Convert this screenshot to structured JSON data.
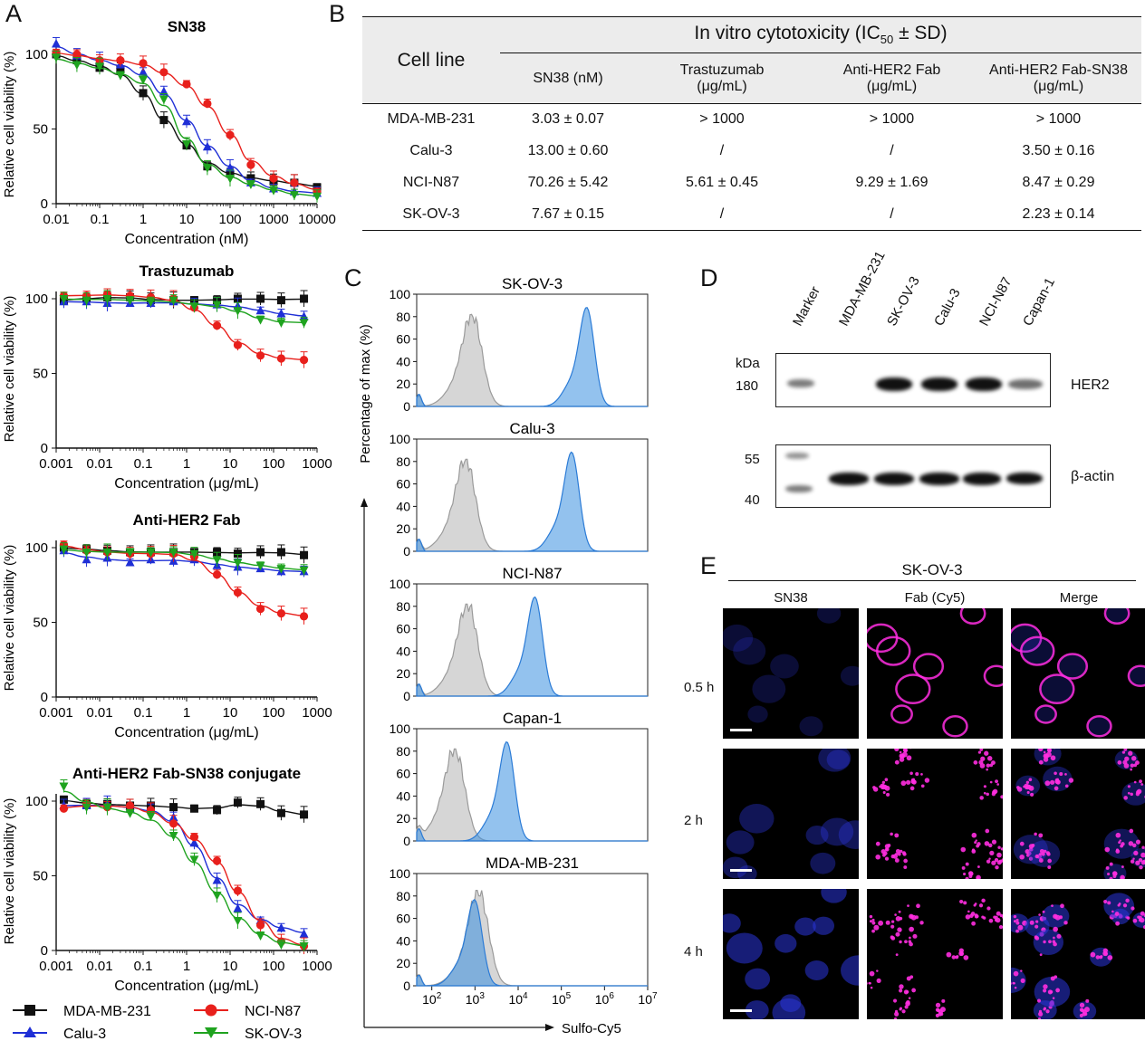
{
  "panel_labels": {
    "a": "A",
    "b": "B",
    "c": "C",
    "d": "D",
    "e": "E"
  },
  "colors": {
    "mda": "#111111",
    "calu": "#1f2fd6",
    "nci": "#e8201c",
    "skov": "#1fa31f",
    "histo_blue": "#3a8fe0",
    "histo_gray": "#b4b4b4",
    "magenta": "#ff2ee0",
    "dapi": "#2a35d8"
  },
  "panelA": {
    "charts": [
      {
        "title": "SN38",
        "xlabel": "Concentration (nM)",
        "ylabel": "Relative cell viability (%)"
      },
      {
        "title": "Trastuzumab",
        "xlabel": "Concentration (μg/mL)",
        "ylabel": "Relative cell viability (%)"
      },
      {
        "title": "Anti-HER2 Fab",
        "xlabel": "Concentration (μg/mL)",
        "ylabel": "Relative cell viability (%)"
      },
      {
        "title": "Anti-HER2 Fab-SN38 conjugate",
        "xlabel": "Concentration (μg/mL)",
        "ylabel": "Relative cell viability (%)"
      }
    ],
    "legend": [
      "MDA-MB-231",
      "NCI-N87",
      "Calu-3",
      "SK-OV-3"
    ]
  },
  "chart_data": [
    {
      "type": "scatter",
      "title": "SN38",
      "xlabel": "Concentration (nM)",
      "ylabel": "Relative cell viability (%)",
      "x_scale": "log",
      "xlim": [
        0.01,
        10000
      ],
      "ylim": [
        0,
        110
      ],
      "x_ticks": [
        "0.01",
        "0.1",
        "1",
        "10",
        "100",
        "1000",
        "10000"
      ],
      "y_ticks": [
        "0",
        "50",
        "100"
      ],
      "x": [
        0.01,
        0.03,
        0.1,
        0.3,
        1,
        3,
        10,
        30,
        100,
        300,
        1000,
        3000,
        10000
      ],
      "series": [
        {
          "name": "MDA-MB-231",
          "values": [
            100,
            96,
            91,
            90,
            74,
            56,
            39,
            25,
            20,
            17,
            15,
            14,
            11
          ]
        },
        {
          "name": "Calu-3",
          "values": [
            107,
            99,
            96,
            93,
            88,
            75,
            55,
            38,
            24,
            14,
            10,
            8,
            7
          ]
        },
        {
          "name": "NCI-N87",
          "values": [
            101,
            100,
            96,
            96,
            94,
            88,
            80,
            67,
            46,
            26,
            17,
            14,
            8
          ]
        },
        {
          "name": "SK-OV-3",
          "values": [
            98,
            93,
            92,
            86,
            83,
            70,
            40,
            24,
            17,
            13,
            9,
            6,
            5
          ]
        }
      ]
    },
    {
      "type": "scatter",
      "title": "Trastuzumab",
      "xlabel": "Concentration (μg/mL)",
      "ylabel": "Relative cell viability (%)",
      "x_scale": "log",
      "xlim": [
        0.001,
        1000
      ],
      "ylim": [
        0,
        110
      ],
      "x_ticks": [
        "0.001",
        "0.01",
        "0.1",
        "1",
        "10",
        "100",
        "1000"
      ],
      "y_ticks": [
        "0",
        "50",
        "100"
      ],
      "x": [
        0.0015,
        0.005,
        0.015,
        0.05,
        0.15,
        0.5,
        1.5,
        5,
        15,
        50,
        150,
        500
      ],
      "series": [
        {
          "name": "MDA-MB-231",
          "values": [
            99,
            100,
            101,
            101,
            99,
            99,
            99,
            99,
            100,
            100,
            99,
            100
          ]
        },
        {
          "name": "Calu-3",
          "values": [
            98,
            98,
            97,
            97,
            97,
            98,
            96,
            96,
            95,
            92,
            90,
            88
          ]
        },
        {
          "name": "NCI-N87",
          "values": [
            102,
            102,
            103,
            102,
            101,
            100,
            94,
            82,
            69,
            62,
            60,
            59
          ]
        },
        {
          "name": "SK-OV-3",
          "values": [
            100,
            99,
            100,
            99,
            98,
            99,
            95,
            96,
            92,
            86,
            84,
            84
          ]
        }
      ]
    },
    {
      "type": "scatter",
      "title": "Anti-HER2 Fab",
      "xlabel": "Concentration (μg/mL)",
      "ylabel": "Relative cell viability (%)",
      "x_scale": "log",
      "xlim": [
        0.001,
        1000
      ],
      "ylim": [
        0,
        110
      ],
      "x_ticks": [
        "0.001",
        "0.01",
        "0.1",
        "1",
        "10",
        "100",
        "1000"
      ],
      "y_ticks": [
        "0",
        "50",
        "100"
      ],
      "x": [
        0.0015,
        0.005,
        0.015,
        0.05,
        0.15,
        0.5,
        1.5,
        5,
        15,
        50,
        150,
        500
      ],
      "series": [
        {
          "name": "MDA-MB-231",
          "values": [
            100,
            99,
            98,
            97,
            97,
            97,
            97,
            97,
            96,
            97,
            97,
            95
          ]
        },
        {
          "name": "Calu-3",
          "values": [
            98,
            92,
            93,
            90,
            92,
            91,
            92,
            88,
            87,
            86,
            84,
            84
          ]
        },
        {
          "name": "NCI-N87",
          "values": [
            102,
            98,
            97,
            96,
            96,
            96,
            94,
            82,
            70,
            59,
            56,
            54
          ]
        },
        {
          "name": "SK-OV-3",
          "values": [
            99,
            97,
            97,
            97,
            97,
            97,
            96,
            92,
            90,
            88,
            86,
            85
          ]
        }
      ]
    },
    {
      "type": "scatter",
      "title": "Anti-HER2 Fab-SN38 conjugate",
      "xlabel": "Concentration (μg/mL)",
      "ylabel": "Relative cell viability (%)",
      "x_scale": "log",
      "xlim": [
        0.001,
        1000
      ],
      "ylim": [
        0,
        110
      ],
      "x_ticks": [
        "0.001",
        "0.01",
        "0.1",
        "1",
        "10",
        "100",
        "1000"
      ],
      "y_ticks": [
        "0",
        "50",
        "100"
      ],
      "x": [
        0.0015,
        0.005,
        0.015,
        0.05,
        0.15,
        0.5,
        1.5,
        5,
        15,
        50,
        150,
        500
      ],
      "series": [
        {
          "name": "MDA-MB-231",
          "values": [
            101,
            98,
            98,
            97,
            97,
            96,
            95,
            94,
            99,
            98,
            92,
            91
          ]
        },
        {
          "name": "Calu-3",
          "values": [
            97,
            97,
            98,
            95,
            95,
            89,
            72,
            47,
            28,
            20,
            15,
            11
          ]
        },
        {
          "name": "NCI-N87",
          "values": [
            95,
            98,
            96,
            97,
            94,
            85,
            76,
            60,
            40,
            17,
            6,
            3
          ]
        },
        {
          "name": "SK-OV-3",
          "values": [
            110,
            96,
            96,
            92,
            90,
            77,
            61,
            37,
            20,
            10,
            4,
            3
          ]
        }
      ]
    }
  ],
  "tableB": {
    "cell_line_header": "Cell line",
    "group_header": "In vitro cytotoxicity (IC",
    "group_sub": "50",
    "group_tail": " ± SD)",
    "columns": [
      "SN38 (nM)",
      "Trastuzumab",
      "Anti-HER2 Fab",
      "Anti-HER2 Fab-SN38"
    ],
    "column_units": [
      "",
      "(μg/mL)",
      "(μg/mL)",
      "(μg/mL)"
    ],
    "rows": [
      {
        "cell": "MDA-MB-231",
        "v": [
          "3.03 ± 0.07",
          "> 1000",
          "> 1000",
          "> 1000"
        ]
      },
      {
        "cell": "Calu-3",
        "v": [
          "13.00 ± 0.60",
          "/",
          "/",
          "3.50 ± 0.16"
        ]
      },
      {
        "cell": "NCI-N87",
        "v": [
          "70.26 ± 5.42",
          "5.61 ± 0.45",
          "9.29 ± 1.69",
          "8.47 ± 0.29"
        ]
      },
      {
        "cell": "SK-OV-3",
        "v": [
          "7.67 ± 0.15",
          "/",
          "/",
          "2.23 ± 0.14"
        ]
      }
    ]
  },
  "panelC": {
    "ylabel": "Percentage of max (%)",
    "xlabel": "Sulfo-Cy5",
    "y_ticks": [
      "0",
      "20",
      "40",
      "60",
      "80",
      "100"
    ],
    "x_ticks": [
      {
        "b": "10",
        "e": "2"
      },
      {
        "b": "10",
        "e": "3"
      },
      {
        "b": "10",
        "e": "4"
      },
      {
        "b": "10",
        "e": "5"
      },
      {
        "b": "10",
        "e": "6"
      },
      {
        "b": "10",
        "e": "7"
      }
    ],
    "histograms": [
      {
        "title": "SK-OV-3",
        "gray_peak_log": 2.95,
        "blue_peak_log": 5.6
      },
      {
        "title": "Calu-3",
        "gray_peak_log": 2.8,
        "blue_peak_log": 5.25
      },
      {
        "title": "NCI-N87",
        "gray_peak_log": 2.85,
        "blue_peak_log": 4.4
      },
      {
        "title": "Capan-1",
        "gray_peak_log": 2.55,
        "blue_peak_log": 3.75
      },
      {
        "title": "MDA-MB-231",
        "gray_peak_log": 3.1,
        "blue_peak_log": 3.0
      }
    ]
  },
  "panelD": {
    "lanes": [
      "Marker",
      "MDA-MB-231",
      "SK-OV-3",
      "Calu-3",
      "NCI-N87",
      "Capan-1"
    ],
    "kda": "kDa",
    "top_mark": "180",
    "bottom_marks": [
      "55",
      "40"
    ],
    "labels": [
      "HER2",
      "β-actin"
    ]
  },
  "panelE": {
    "header": "SK-OV-3",
    "columns": [
      "SN38",
      "Fab (Cy5)",
      "Merge"
    ],
    "rows": [
      "0.5 h",
      "2 h",
      "4 h"
    ]
  },
  "legend": [
    "MDA-MB-231",
    "NCI-N87",
    "Calu-3",
    "SK-OV-3"
  ]
}
